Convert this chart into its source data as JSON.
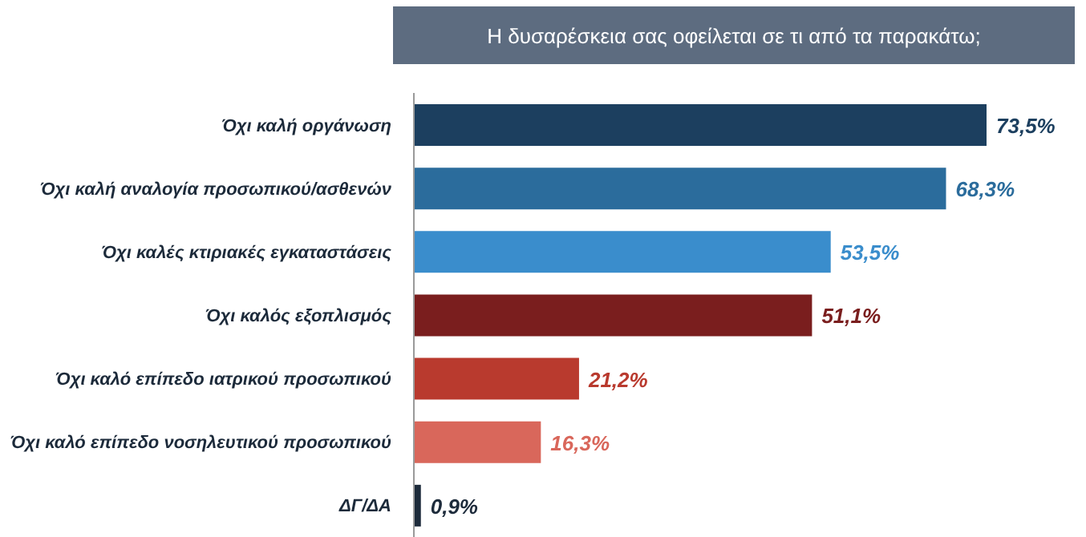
{
  "chart_data": {
    "type": "bar",
    "orientation": "horizontal",
    "title": "Η δυσαρέσκεια σας οφείλεται σε τι από τα παρακάτω;",
    "categories": [
      "Όχι καλή οργάνωση",
      "Όχι καλή αναλογία προσωπικού/ασθενών",
      "Όχι καλές κτιριακές εγκαταστάσεις",
      "Όχι καλός εξοπλισμός",
      "Όχι καλό επίπεδο ιατρικού προσωπικού",
      "Όχι καλό επίπεδο νοσηλευτικού προσωπικού",
      "ΔΓ/ΔΑ"
    ],
    "values": [
      73.5,
      68.3,
      53.5,
      51.1,
      21.2,
      16.3,
      0.9
    ],
    "colors": [
      "#1c3f5f",
      "#2b6c9c",
      "#3a8dcc",
      "#7a1e1e",
      "#b93a2e",
      "#d9675b",
      "#1d2b3b"
    ],
    "value_labels": [
      "73,5%",
      "68,3%",
      "53,5%",
      "51,1%",
      "21,2%",
      "16,3%",
      "0,9%"
    ],
    "grid": false,
    "legend": false
  }
}
